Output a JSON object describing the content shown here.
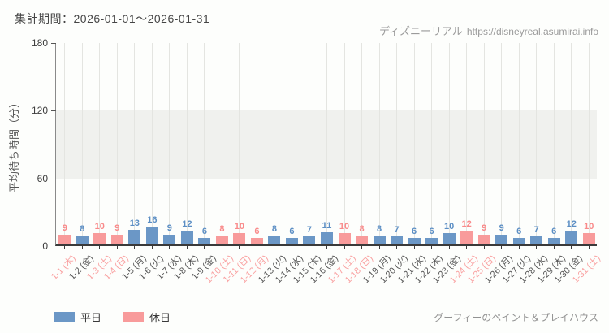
{
  "header": {
    "period_label": "集計期間：2026-01-01～2026-01-31"
  },
  "watermark": {
    "site_name": "ディズニーリアル",
    "site_url": "https://disneyreal.asumirai.info"
  },
  "legend": {
    "weekday_label": "平日",
    "holiday_label": "休日"
  },
  "footer": {
    "attraction_name": "グーフィーのペイント＆プレイハウス"
  },
  "colors": {
    "weekday_bar": "#6b97c6",
    "holiday_bar": "#f89b9b",
    "weekday_text": "#5b8ec4",
    "holiday_text": "#f98a8a",
    "weekday_axis_label": "#555555",
    "holiday_axis_label": "#f9a0a0",
    "band": "#f0f1ee",
    "gridline": "#e4e5e1"
  },
  "chart_data": {
    "type": "bar",
    "title": "",
    "xlabel": "",
    "ylabel": "平均待ち時間（分）",
    "ylim": [
      0,
      180
    ],
    "yticks": [
      0,
      60,
      120,
      180
    ],
    "shaded_band": [
      60,
      120
    ],
    "legend_position": "bottom-left",
    "grid": "vertical",
    "categories": [
      "1-1 (木)",
      "1-2 (金)",
      "1-3 (土)",
      "1-4 (日)",
      "1-5 (月)",
      "1-6 (火)",
      "1-7 (水)",
      "1-8 (木)",
      "1-9 (金)",
      "1-10 (土)",
      "1-11 (日)",
      "1-12 (月)",
      "1-13 (火)",
      "1-14 (水)",
      "1-15 (木)",
      "1-16 (金)",
      "1-17 (土)",
      "1-18 (日)",
      "1-19 (月)",
      "1-20 (火)",
      "1-21 (水)",
      "1-22 (木)",
      "1-23 (金)",
      "1-24 (土)",
      "1-25 (日)",
      "1-26 (月)",
      "1-27 (火)",
      "1-28 (水)",
      "1-29 (木)",
      "1-30 (金)",
      "1-31 (土)"
    ],
    "values": [
      9,
      8,
      10,
      9,
      13,
      16,
      9,
      12,
      6,
      8,
      10,
      6,
      8,
      6,
      7,
      11,
      10,
      8,
      8,
      7,
      6,
      6,
      10,
      12,
      9,
      9,
      6,
      7,
      6,
      12,
      10
    ],
    "day_types": [
      "holiday",
      "weekday",
      "holiday",
      "holiday",
      "weekday",
      "weekday",
      "weekday",
      "weekday",
      "weekday",
      "holiday",
      "holiday",
      "holiday",
      "weekday",
      "weekday",
      "weekday",
      "weekday",
      "holiday",
      "holiday",
      "weekday",
      "weekday",
      "weekday",
      "weekday",
      "weekday",
      "holiday",
      "holiday",
      "weekday",
      "weekday",
      "weekday",
      "weekday",
      "weekday",
      "holiday"
    ],
    "series": [
      {
        "name": "平日",
        "color": "#6b97c6"
      },
      {
        "name": "休日",
        "color": "#f89b9b"
      }
    ]
  }
}
